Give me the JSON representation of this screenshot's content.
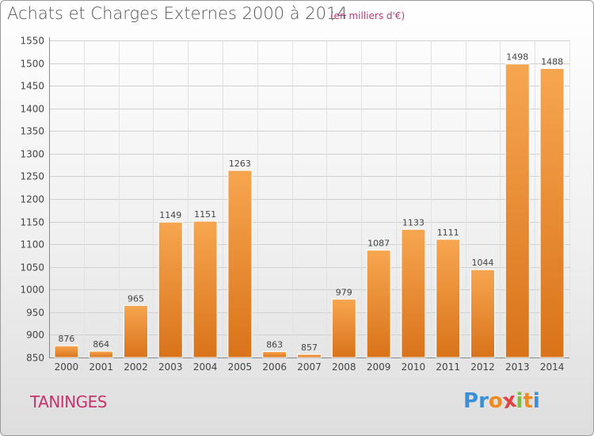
{
  "header": {
    "title": "Achats et Charges Externes 2000 à 2014",
    "subtitle": "(en milliers d'€)"
  },
  "footer": {
    "commune": "TANINGES",
    "brand_letters": [
      "P",
      "r",
      "o",
      "x",
      "i",
      "t",
      "i"
    ],
    "brand_colors": [
      "#3a8fd6",
      "#3a8fd6",
      "#f08a1c",
      "#e53f3f",
      "#7cbf3a",
      "#f08a1c",
      "#3a8fd6"
    ]
  },
  "colors": {
    "bar_light": "#f7a650",
    "bar_dark": "#d9731a",
    "title": "#555555",
    "accent": "#c8336e"
  },
  "chart_data": {
    "type": "bar",
    "categories": [
      "2000",
      "2001",
      "2002",
      "2003",
      "2004",
      "2005",
      "2006",
      "2007",
      "2008",
      "2009",
      "2010",
      "2011",
      "2012",
      "2013",
      "2014"
    ],
    "values": [
      876,
      864,
      965,
      1149,
      1151,
      1263,
      863,
      857,
      979,
      1087,
      1133,
      1111,
      1044,
      1498,
      1488
    ],
    "ylim": [
      850,
      1550
    ],
    "yticks": [
      850,
      900,
      950,
      1000,
      1050,
      1100,
      1150,
      1200,
      1250,
      1300,
      1350,
      1400,
      1450,
      1500,
      1550
    ],
    "grid": true,
    "legend": "none"
  }
}
